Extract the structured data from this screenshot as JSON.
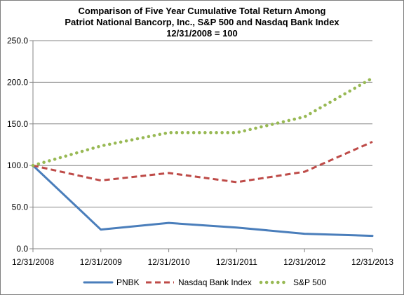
{
  "chart_data": {
    "type": "line",
    "title": [
      "Comparison of Five Year Cumulative Total Return Among",
      "Patriot National Bancorp, Inc., S&P 500 and Nasdaq Bank Index",
      "12/31/2008 = 100"
    ],
    "categories": [
      "12/31/2008",
      "12/31/2009",
      "12/31/2010",
      "12/31/2011",
      "12/31/2012",
      "12/31/2013"
    ],
    "y_tick_labels": [
      "0.0",
      "50.0",
      "100.0",
      "150.0",
      "200.0",
      "250.0"
    ],
    "ylim": [
      0,
      250
    ],
    "grid": "horizontal",
    "legend_position": "bottom",
    "series": [
      {
        "name": "PNBK",
        "values": [
          100.0,
          23.0,
          31.0,
          25.5,
          18.0,
          15.5
        ],
        "color": "#4a7ebb",
        "style": "solid"
      },
      {
        "name": "Nasdaq Bank Index",
        "values": [
          100.0,
          82.0,
          91.0,
          80.0,
          92.5,
          128.5
        ],
        "color": "#be4b48",
        "style": "dashed"
      },
      {
        "name": "S&P 500",
        "values": [
          100.0,
          123.5,
          139.5,
          139.5,
          158.5,
          205.0
        ],
        "color": "#98b954",
        "style": "dotted"
      }
    ]
  }
}
